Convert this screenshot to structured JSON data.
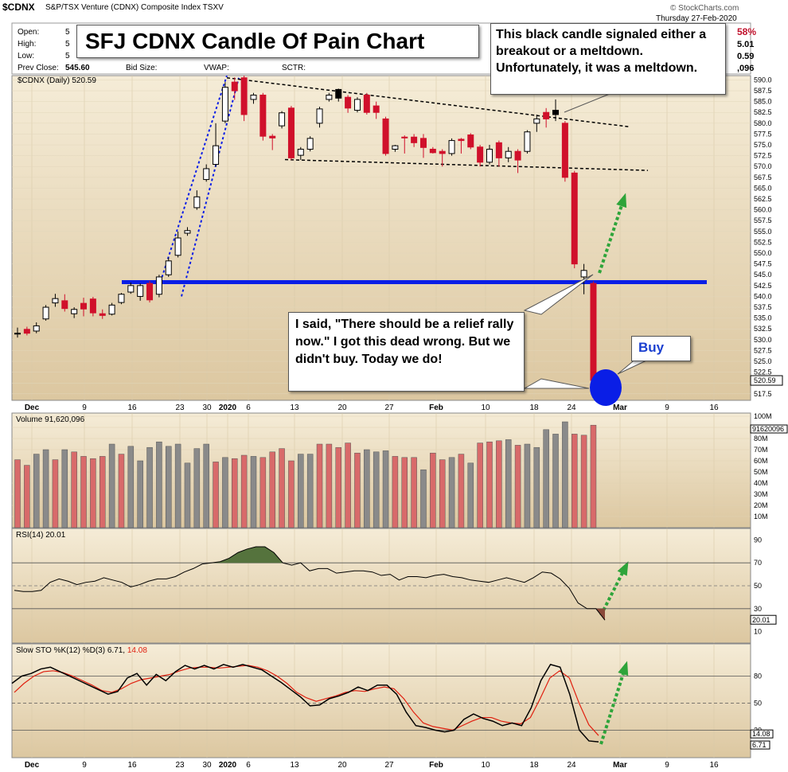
{
  "header": {
    "symbol": "$CDNX",
    "description": "S&P/TSX Venture (CDNX) Composite Index TSXV",
    "date": "Thursday 27-Feb-2020",
    "open_label": "Open:",
    "open_value": "5",
    "high_label": "High:",
    "high_value": "5",
    "low_label": "Low:",
    "low_value": "5",
    "prev_close_label": "Prev Close:",
    "prev_close_value": "545.60",
    "bid_label": "Bid Size:",
    "vwap_label": "VWAP:",
    "sctr_label": "SCTR:",
    "right_values": [
      "58%",
      "5.01",
      "0.59",
      ",096"
    ],
    "watermark": "© StockCharts.com",
    "price_legend": "$CDNX (Daily) 520.59",
    "last_price_label": "520.59"
  },
  "annotations": {
    "title": "SFJ CDNX Candle Of Pain Chart",
    "top_callout": "This black candle signaled either a breakout or a meltdown. Unfortunately, it was a meltdown.",
    "mid_callout": "I said, \"There should be a relief rally now.\" I got this dead wrong.  But we didn't buy. Today we do!",
    "buy_callout": "Buy"
  },
  "colors": {
    "panel_bg": "#f5ecd7",
    "panel_bg_bottom": "#dcc7a0",
    "up_candle": "#ffffff",
    "down_candle": "#d0102b",
    "black_candle": "#000000",
    "support_line": "#0a1ee6",
    "dotted_arrow": "#2ea43a",
    "volume_up": "#8a8a8a",
    "volume_down": "#d86a6a",
    "rsi_fill_high": "#55733d",
    "rsi_fill_low": "#8b4a3a",
    "sto_d_line": "#e02010",
    "buy_circle": "#0a1ee6"
  },
  "chart_data": [
    {
      "type": "candlestick",
      "title": "$CDNX (Daily) 520.59",
      "ylim": [
        516,
        591
      ],
      "y_ticks": [
        "590.0",
        "587.5",
        "585.0",
        "582.5",
        "580.0",
        "577.5",
        "575.0",
        "572.5",
        "570.0",
        "567.5",
        "565.0",
        "562.5",
        "560.0",
        "557.5",
        "555.0",
        "552.5",
        "550.0",
        "547.5",
        "545.0",
        "542.5",
        "540.0",
        "537.5",
        "535.0",
        "532.5",
        "530.0",
        "527.5",
        "525.0",
        "522.5",
        "520.0",
        "517.5"
      ],
      "x_ticks": [
        "Dec",
        "9",
        "16",
        "23",
        "30",
        "2020",
        "6",
        "13",
        "20",
        "27",
        "Feb",
        "10",
        "18",
        "24",
        "Mar",
        "9",
        "16"
      ],
      "candles": [
        {
          "o": 531.3,
          "h": 532.8,
          "l": 530.5,
          "c": 531.5,
          "dir": "up"
        },
        {
          "o": 532.4,
          "h": 533.0,
          "l": 531.0,
          "c": 531.5,
          "dir": "down"
        },
        {
          "o": 532.0,
          "h": 534.0,
          "l": 531.5,
          "c": 533.2,
          "dir": "up"
        },
        {
          "o": 534.8,
          "h": 538.0,
          "l": 534.4,
          "c": 537.5,
          "dir": "up"
        },
        {
          "o": 538.5,
          "h": 540.6,
          "l": 537.6,
          "c": 539.5,
          "dir": "up"
        },
        {
          "o": 539.0,
          "h": 540.5,
          "l": 536.5,
          "c": 537.2,
          "dir": "down"
        },
        {
          "o": 536.0,
          "h": 537.5,
          "l": 535.0,
          "c": 537.0,
          "dir": "up"
        },
        {
          "o": 538.4,
          "h": 539.7,
          "l": 535.4,
          "c": 537.1,
          "dir": "down"
        },
        {
          "o": 539.4,
          "h": 539.9,
          "l": 535.4,
          "c": 536.2,
          "dir": "down"
        },
        {
          "o": 536.0,
          "h": 537.0,
          "l": 534.8,
          "c": 535.6,
          "dir": "down"
        },
        {
          "o": 535.9,
          "h": 538.5,
          "l": 535.6,
          "c": 538.0,
          "dir": "up"
        },
        {
          "o": 538.6,
          "h": 540.8,
          "l": 538.2,
          "c": 540.5,
          "dir": "up"
        },
        {
          "o": 541.0,
          "h": 543.2,
          "l": 540.6,
          "c": 542.5,
          "dir": "up"
        },
        {
          "o": 540.0,
          "h": 543.0,
          "l": 539.0,
          "c": 542.5,
          "dir": "up"
        },
        {
          "o": 543.0,
          "h": 543.6,
          "l": 538.6,
          "c": 539.2,
          "dir": "down"
        },
        {
          "o": 540.5,
          "h": 545.0,
          "l": 539.8,
          "c": 544.5,
          "dir": "up"
        },
        {
          "o": 545.0,
          "h": 549.0,
          "l": 544.5,
          "c": 548.2,
          "dir": "up"
        },
        {
          "o": 549.5,
          "h": 555.0,
          "l": 549.0,
          "c": 553.5,
          "dir": "up"
        },
        {
          "o": 554.6,
          "h": 556.0,
          "l": 554.0,
          "c": 555.2,
          "dir": "up"
        },
        {
          "o": 560.5,
          "h": 564.5,
          "l": 560.0,
          "c": 563.0,
          "dir": "up"
        },
        {
          "o": 567.0,
          "h": 570.5,
          "l": 566.5,
          "c": 569.5,
          "dir": "up"
        },
        {
          "o": 570.5,
          "h": 580.0,
          "l": 570.0,
          "c": 574.8,
          "dir": "up"
        },
        {
          "o": 580.5,
          "h": 589.5,
          "l": 580.0,
          "c": 588.3,
          "dir": "up"
        },
        {
          "o": 589.5,
          "h": 590.6,
          "l": 585.4,
          "c": 587.5,
          "dir": "down"
        },
        {
          "o": 590.5,
          "h": 591.0,
          "l": 580.5,
          "c": 582.0,
          "dir": "down"
        },
        {
          "o": 585.5,
          "h": 587.0,
          "l": 584.5,
          "c": 586.5,
          "dir": "up"
        },
        {
          "o": 586.5,
          "h": 587.0,
          "l": 576.0,
          "c": 577.0,
          "dir": "down"
        },
        {
          "o": 577.0,
          "h": 577.5,
          "l": 573.8,
          "c": 576.6,
          "dir": "down"
        },
        {
          "o": 579.4,
          "h": 582.8,
          "l": 578.8,
          "c": 582.4,
          "dir": "up"
        },
        {
          "o": 583.5,
          "h": 584.0,
          "l": 571.5,
          "c": 572.0,
          "dir": "down"
        },
        {
          "o": 572.6,
          "h": 574.5,
          "l": 571.5,
          "c": 574.0,
          "dir": "up"
        },
        {
          "o": 574.0,
          "h": 577.0,
          "l": 573.5,
          "c": 576.5,
          "dir": "up"
        },
        {
          "o": 580.0,
          "h": 583.8,
          "l": 579.0,
          "c": 583.3,
          "dir": "up"
        },
        {
          "o": 585.5,
          "h": 587.0,
          "l": 585.0,
          "c": 586.5,
          "dir": "up"
        },
        {
          "o": 585.8,
          "h": 588.0,
          "l": 585.0,
          "c": 587.8,
          "dir": "black"
        },
        {
          "o": 586.0,
          "h": 586.5,
          "l": 582.4,
          "c": 583.5,
          "dir": "down"
        },
        {
          "o": 583.0,
          "h": 586.0,
          "l": 582.5,
          "c": 585.5,
          "dir": "up"
        },
        {
          "o": 586.5,
          "h": 587.0,
          "l": 582.0,
          "c": 582.5,
          "dir": "down"
        },
        {
          "o": 584.0,
          "h": 585.0,
          "l": 581.0,
          "c": 582.5,
          "dir": "down"
        },
        {
          "o": 581.0,
          "h": 581.5,
          "l": 572.5,
          "c": 573.0,
          "dir": "down"
        },
        {
          "o": 574.0,
          "h": 575.0,
          "l": 573.4,
          "c": 574.8,
          "dir": "up"
        },
        {
          "o": 576.8,
          "h": 577.2,
          "l": 573.0,
          "c": 576.6,
          "dir": "down"
        },
        {
          "o": 576.8,
          "h": 577.5,
          "l": 574.5,
          "c": 575.5,
          "dir": "down"
        },
        {
          "o": 576.5,
          "h": 577.5,
          "l": 572.0,
          "c": 574.4,
          "dir": "down"
        },
        {
          "o": 573.2,
          "h": 574.5,
          "l": 573.0,
          "c": 574.0,
          "dir": "down"
        },
        {
          "o": 573.5,
          "h": 574.0,
          "l": 570.0,
          "c": 573.0,
          "dir": "down"
        },
        {
          "o": 573.0,
          "h": 576.5,
          "l": 572.5,
          "c": 576.0,
          "dir": "up"
        },
        {
          "o": 576.3,
          "h": 576.6,
          "l": 573.0,
          "c": 576.0,
          "dir": "down"
        },
        {
          "o": 577.3,
          "h": 577.7,
          "l": 574.0,
          "c": 574.5,
          "dir": "down"
        },
        {
          "o": 574.5,
          "h": 575.0,
          "l": 570.0,
          "c": 571.0,
          "dir": "down"
        },
        {
          "o": 571.0,
          "h": 575.0,
          "l": 570.5,
          "c": 574.0,
          "dir": "up"
        },
        {
          "o": 575.5,
          "h": 576.0,
          "l": 570.0,
          "c": 572.0,
          "dir": "down"
        },
        {
          "o": 572.0,
          "h": 574.5,
          "l": 571.0,
          "c": 573.5,
          "dir": "up"
        },
        {
          "o": 573.5,
          "h": 574.0,
          "l": 568.5,
          "c": 571.5,
          "dir": "down"
        },
        {
          "o": 573.5,
          "h": 578.4,
          "l": 573.0,
          "c": 578.0,
          "dir": "up"
        },
        {
          "o": 580.0,
          "h": 582.0,
          "l": 578.0,
          "c": 581.0,
          "dir": "up"
        },
        {
          "o": 582.5,
          "h": 583.5,
          "l": 579.0,
          "c": 581.0,
          "dir": "down"
        },
        {
          "o": 582.0,
          "h": 585.5,
          "l": 580.5,
          "c": 583.0,
          "dir": "black"
        },
        {
          "o": 580.0,
          "h": 580.5,
          "l": 566.5,
          "c": 567.5,
          "dir": "down"
        },
        {
          "o": 568.5,
          "h": 569.0,
          "l": 546.5,
          "c": 547.5,
          "dir": "down"
        },
        {
          "o": 546.0,
          "h": 547.5,
          "l": 540.5,
          "c": 544.5,
          "dir": "up"
        },
        {
          "o": 543.0,
          "h": 543.5,
          "l": 520.0,
          "c": 520.6,
          "dir": "down"
        }
      ],
      "support_level": 543.3,
      "last_close": 520.59
    },
    {
      "type": "bar",
      "title": "Volume 91,620,096",
      "ylim": [
        0,
        100
      ],
      "y_ticks": [
        "100M",
        "90M",
        "80M",
        "70M",
        "60M",
        "50M",
        "40M",
        "30M",
        "20M",
        "10M"
      ],
      "last_label": "91620096",
      "values": [
        61,
        56,
        66,
        70,
        61,
        70,
        68,
        64,
        62,
        64,
        75,
        66,
        73,
        60,
        72,
        77,
        73,
        75,
        58,
        71,
        75,
        59,
        63,
        62,
        65,
        64,
        63,
        68,
        71,
        60,
        66,
        66,
        75,
        75,
        72,
        76,
        67,
        70,
        68,
        69,
        64,
        63,
        63,
        52,
        67,
        61,
        63,
        66,
        58,
        76,
        77,
        78,
        79,
        74,
        75,
        72,
        88,
        84,
        95,
        84,
        83,
        92
      ],
      "up_flags": [
        0,
        0,
        1,
        1,
        0,
        1,
        0,
        0,
        0,
        0,
        1,
        0,
        1,
        1,
        1,
        1,
        1,
        1,
        1,
        1,
        1,
        0,
        1,
        0,
        0,
        1,
        0,
        0,
        0,
        0,
        1,
        1,
        0,
        0,
        0,
        0,
        0,
        1,
        1,
        1,
        0,
        0,
        0,
        1,
        0,
        0,
        1,
        0,
        1,
        0,
        0,
        0,
        1,
        0,
        1,
        1,
        1,
        1,
        1,
        0,
        0,
        0
      ]
    },
    {
      "type": "line",
      "title": "RSI(14) 20.01",
      "ylim": [
        0,
        100
      ],
      "y_ticks": [
        "90",
        "70",
        "50",
        "30",
        "10"
      ],
      "last_label": "20.01",
      "values": [
        46,
        45,
        45,
        46,
        53,
        56,
        54,
        51,
        53,
        54,
        57,
        55,
        53,
        49,
        51,
        54,
        56,
        56,
        58,
        62,
        65,
        69,
        70,
        71,
        74,
        79,
        82,
        84,
        84,
        79,
        70,
        68,
        70,
        63,
        65,
        65,
        61,
        62,
        63,
        63,
        62,
        59,
        60,
        55,
        58,
        58,
        57,
        59,
        60,
        58,
        57,
        55,
        54,
        53,
        55,
        57,
        55,
        53,
        57,
        62,
        61,
        56,
        48,
        35,
        30,
        30,
        20
      ]
    },
    {
      "type": "line",
      "title": "Slow STO %K(12) %D(3) 6.71, 14.08",
      "ylim": [
        0,
        100
      ],
      "y_ticks": [
        "80",
        "50",
        "20"
      ],
      "last_labels": [
        "14.08",
        "6.71"
      ],
      "series": [
        {
          "name": "%K(12)",
          "values": [
            72,
            80,
            83,
            88,
            90,
            85,
            80,
            75,
            70,
            65,
            60,
            63,
            78,
            83,
            70,
            82,
            75,
            85,
            92,
            88,
            92,
            88,
            93,
            90,
            93,
            90,
            87,
            80,
            73,
            65,
            57,
            47,
            48,
            55,
            58,
            62,
            68,
            64,
            70,
            70,
            60,
            40,
            25,
            23,
            20,
            18,
            20,
            32,
            38,
            33,
            30,
            25,
            28,
            25,
            45,
            75,
            93,
            90,
            60,
            20,
            8,
            7
          ]
        },
        {
          "name": "%D(3)",
          "values": [
            62,
            72,
            80,
            85,
            86,
            84,
            80,
            75,
            70,
            64,
            62,
            66,
            72,
            76,
            78,
            80,
            82,
            86,
            89,
            90,
            90,
            89,
            90,
            91,
            92,
            90,
            86,
            80,
            72,
            62,
            56,
            52,
            55,
            58,
            62,
            64,
            63,
            66,
            68,
            66,
            55,
            40,
            28,
            24,
            22,
            20,
            25,
            30,
            34,
            34,
            30,
            28,
            27,
            34,
            55,
            78,
            86,
            78,
            50,
            26,
            14
          ]
        }
      ]
    }
  ]
}
